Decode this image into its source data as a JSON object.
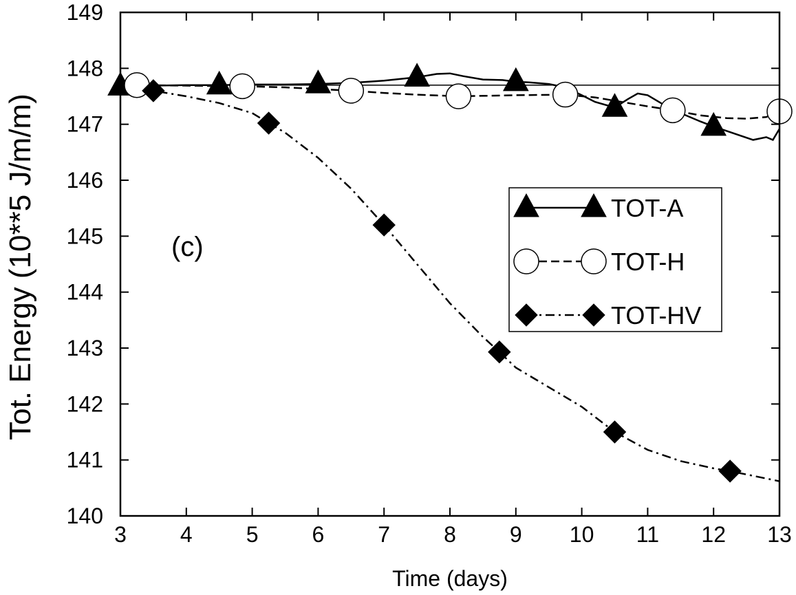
{
  "chart_data": {
    "type": "line",
    "title": "",
    "panel_label": "(c)",
    "xlabel": "Time (days)",
    "ylabel": "Tot. Energy (10**5 J/m/m)",
    "xlim": [
      3,
      13
    ],
    "ylim": [
      140,
      149
    ],
    "xticks": [
      3,
      4,
      5,
      6,
      7,
      8,
      9,
      10,
      11,
      12,
      13
    ],
    "yticks": [
      140,
      141,
      142,
      143,
      144,
      145,
      146,
      147,
      148,
      149
    ],
    "grid": false,
    "legend_position": "right",
    "reference_line": 147.7,
    "series": [
      {
        "name": "TOT-A",
        "line": "solid",
        "marker": "triangle",
        "x": [
          3.0,
          3.5,
          4.0,
          4.5,
          5.0,
          5.5,
          6.0,
          6.5,
          7.0,
          7.5,
          7.8,
          8.0,
          8.2,
          8.5,
          8.8,
          9.0,
          9.2,
          9.5,
          9.75,
          10.0,
          10.2,
          10.5,
          10.7,
          10.85,
          11.0,
          11.2,
          11.4,
          11.6,
          11.8,
          12.0,
          12.2,
          12.4,
          12.6,
          12.8,
          12.9,
          13.0
        ],
        "y": [
          147.68,
          147.69,
          147.7,
          147.7,
          147.71,
          147.71,
          147.72,
          147.74,
          147.78,
          147.84,
          147.9,
          147.91,
          147.86,
          147.8,
          147.79,
          147.76,
          147.75,
          147.72,
          147.66,
          147.52,
          147.4,
          147.3,
          147.45,
          147.55,
          147.52,
          147.38,
          147.25,
          147.15,
          147.05,
          146.96,
          146.88,
          146.8,
          146.72,
          146.77,
          146.72,
          146.92
        ],
        "marker_x": [
          3.0,
          4.5,
          6.0,
          7.5,
          9.0,
          10.5,
          12.0
        ]
      },
      {
        "name": "TOT-H",
        "line": "dashed",
        "marker": "circle",
        "x": [
          3.0,
          3.25,
          4.0,
          4.85,
          5.5,
          6.5,
          7.0,
          7.5,
          8.13,
          9.0,
          9.75,
          10.2,
          10.6,
          11.0,
          11.38,
          11.8,
          12.2,
          12.5,
          12.8,
          13.0
        ],
        "y": [
          147.7,
          147.7,
          147.69,
          147.68,
          147.66,
          147.6,
          147.56,
          147.53,
          147.5,
          147.52,
          147.53,
          147.48,
          147.4,
          147.32,
          147.25,
          147.16,
          147.11,
          147.1,
          147.13,
          147.23
        ],
        "marker_x": [
          3.25,
          4.85,
          6.5,
          8.13,
          9.75,
          11.38,
          13.0
        ]
      },
      {
        "name": "TOT-HV",
        "line": "dashdot",
        "marker": "diamond",
        "x": [
          3.0,
          3.5,
          4.0,
          4.5,
          5.0,
          5.25,
          5.5,
          6.0,
          6.5,
          7.0,
          7.5,
          8.0,
          8.5,
          8.75,
          9.0,
          9.5,
          10.0,
          10.5,
          11.0,
          11.5,
          12.0,
          12.25,
          12.5,
          13.0
        ],
        "y": [
          147.68,
          147.6,
          147.5,
          147.38,
          147.2,
          147.02,
          146.85,
          146.4,
          145.85,
          145.2,
          144.5,
          143.8,
          143.2,
          142.93,
          142.65,
          142.3,
          141.95,
          141.5,
          141.18,
          140.98,
          140.85,
          140.8,
          140.74,
          140.62
        ],
        "marker_x": [
          3.5,
          5.25,
          7.0,
          8.75,
          10.5,
          12.25
        ]
      }
    ]
  }
}
